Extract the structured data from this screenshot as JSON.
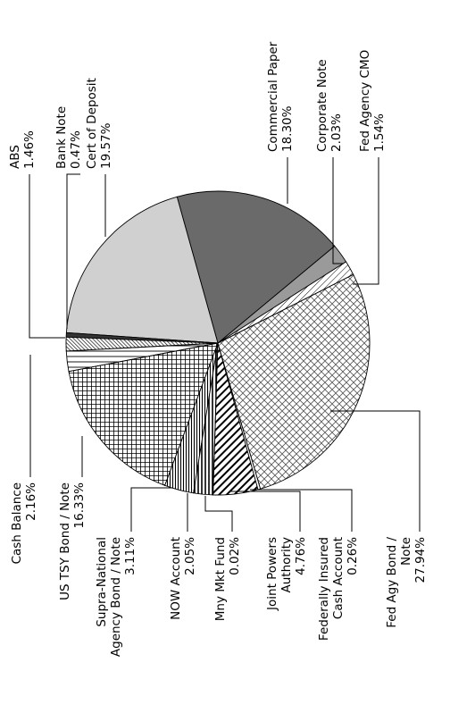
{
  "chart_data": {
    "type": "pie",
    "title": "",
    "slices": [
      {
        "label": "Cash Balance",
        "value": 2.16,
        "display": "2.16%",
        "fill": "hlines"
      },
      {
        "label": "US TSY Bond / Note",
        "value": 16.33,
        "display": "16.33%",
        "fill": "grid"
      },
      {
        "label": "Supra-National Agency Bond / Note",
        "value": 3.11,
        "display": "3.11%",
        "fill": "vlines"
      },
      {
        "label": "NOW Account",
        "value": 2.05,
        "display": "2.05%",
        "fill": "hatch-dense"
      },
      {
        "label": "Mny Mkt Fund",
        "value": 0.02,
        "display": "0.02%",
        "fill": "white"
      },
      {
        "label": "Joint Powers Authority",
        "value": 4.76,
        "display": "4.76%",
        "fill": "diag-bold"
      },
      {
        "label": "Federally Insured Cash Account",
        "value": 0.26,
        "display": "0.26%",
        "fill": "white"
      },
      {
        "label": "Fed Agy Bond / Note",
        "value": 27.94,
        "display": "27.94%",
        "fill": "crosshatch"
      },
      {
        "label": "Fed Agency CMO",
        "value": 1.54,
        "display": "1.54%",
        "fill": "diag-light"
      },
      {
        "label": "Corporate Note",
        "value": 2.03,
        "display": "2.03%",
        "fill": "#9a9a9a"
      },
      {
        "label": "Commercial Paper",
        "value": 18.3,
        "display": "18.30%",
        "fill": "#6a6a6a"
      },
      {
        "label": "Cert of Deposit",
        "value": 19.57,
        "display": "19.57%",
        "fill": "#d0d0d0"
      },
      {
        "label": "Bank Note",
        "value": 0.47,
        "display": "0.47%",
        "fill": "#333333"
      },
      {
        "label": "ABS",
        "value": 1.46,
        "display": "1.46%",
        "fill": "diag-dense"
      }
    ]
  },
  "labels": [
    {
      "lines": [
        "Cash Balance",
        "2.16%"
      ]
    },
    {
      "lines": [
        "US TSY Bond / Note",
        "16.33%"
      ]
    },
    {
      "lines": [
        "Supra-National",
        "Agency Bond / Note",
        "3.11%"
      ]
    },
    {
      "lines": [
        "NOW Account",
        "2.05%"
      ]
    },
    {
      "lines": [
        "Mny Mkt Fund",
        "0.02%"
      ]
    },
    {
      "lines": [
        "Joint Powers",
        "Authority",
        "4.76%"
      ]
    },
    {
      "lines": [
        "Federally Insured",
        "Cash Account",
        "0.26%"
      ]
    },
    {
      "lines": [
        "Fed Agy Bond /",
        "Note",
        "27.94%"
      ]
    },
    {
      "lines": [
        "Fed Agency CMO",
        "1.54%"
      ]
    },
    {
      "lines": [
        "Corporate Note",
        "2.03%"
      ]
    },
    {
      "lines": [
        "Commercial Paper",
        "18.30%"
      ]
    },
    {
      "lines": [
        "Cert of Deposit",
        "19.57%"
      ]
    },
    {
      "lines": [
        "Bank Note",
        "0.47%"
      ]
    },
    {
      "lines": [
        "ABS",
        "1.46%"
      ]
    }
  ]
}
